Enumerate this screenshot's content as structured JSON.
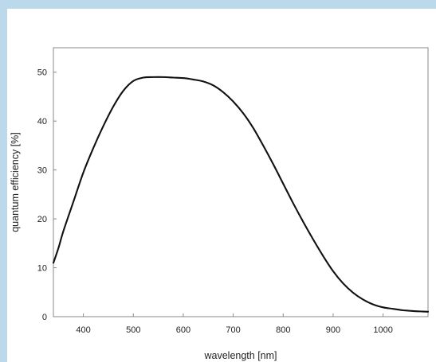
{
  "page": {
    "background_color": "#bcd9ec",
    "panel_color": "#ffffff"
  },
  "chart_data": {
    "type": "line",
    "title": "",
    "xlabel": "wavelength [nm]",
    "ylabel": "quantum efficiency [%]",
    "xlim": [
      340,
      1090
    ],
    "ylim": [
      0,
      55
    ],
    "xticks": [
      400,
      500,
      600,
      700,
      800,
      900,
      1000
    ],
    "yticks": [
      0,
      10,
      20,
      30,
      40,
      50
    ],
    "grid": false,
    "legend": "none",
    "line_color": "#111111",
    "series": [
      {
        "x": [
          340,
          350,
          360,
          380,
          400,
          420,
          440,
          460,
          480,
          500,
          520,
          540,
          560,
          580,
          600,
          620,
          640,
          660,
          680,
          700,
          720,
          740,
          760,
          780,
          800,
          820,
          840,
          860,
          880,
          900,
          920,
          940,
          960,
          980,
          1000,
          1020,
          1040,
          1060,
          1080,
          1090
        ],
        "y": [
          11,
          14,
          17.5,
          23.5,
          29.5,
          34.5,
          39,
          43,
          46.2,
          48.2,
          48.9,
          49.0,
          49.0,
          48.9,
          48.8,
          48.5,
          48.1,
          47.3,
          45.9,
          44.0,
          41.6,
          38.6,
          35.0,
          31.2,
          27.2,
          23.2,
          19.4,
          15.8,
          12.4,
          9.3,
          6.8,
          4.9,
          3.5,
          2.5,
          1.9,
          1.6,
          1.3,
          1.15,
          1.05,
          1.0
        ]
      }
    ]
  }
}
